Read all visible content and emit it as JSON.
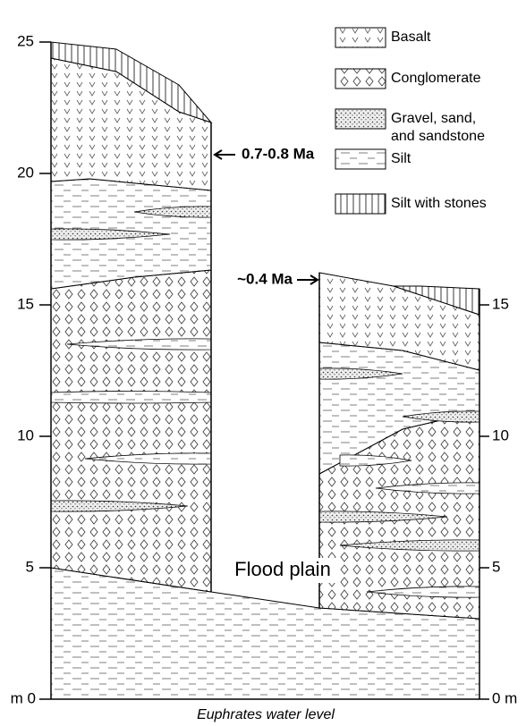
{
  "left_axis": {
    "ticks": [
      "m 0",
      "5",
      "10",
      "15",
      "20",
      "25"
    ]
  },
  "right_axis": {
    "ticks": [
      "0 m",
      "5",
      "10",
      "15"
    ]
  },
  "legend": [
    {
      "label": "Basalt"
    },
    {
      "label": "Conglomerate"
    },
    {
      "label": "Gravel, sand, and sandstone"
    },
    {
      "label": "Silt"
    },
    {
      "label": "Silt with stones"
    }
  ],
  "annotations": {
    "left_age": "0.7-0.8 Ma",
    "right_age": "~0.4 Ma",
    "flood_plain": "Flood plain",
    "water_level": "Euphrates water level"
  }
}
